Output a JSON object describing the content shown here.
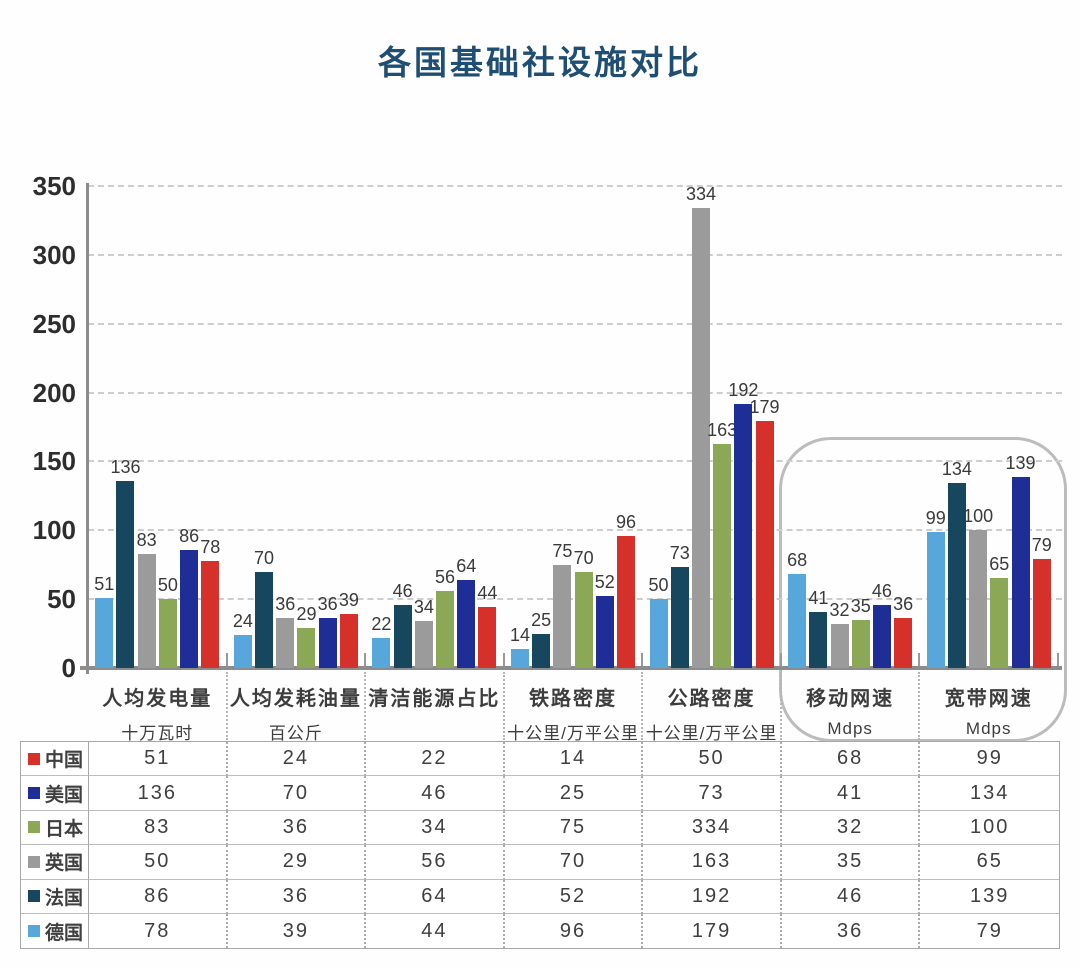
{
  "title": "各国基础社设施对比",
  "chart_data": {
    "type": "bar",
    "title": "各国基础社设施对比",
    "y_axis": {
      "min": 0,
      "max": 350,
      "step": 50,
      "ticks": [
        0,
        50,
        100,
        150,
        200,
        250,
        300,
        350
      ],
      "gridlines": "dashed"
    },
    "categories": [
      {
        "label": "人均发电量",
        "unit": "十万瓦时"
      },
      {
        "label": "人均发耗油量",
        "unit": "百公斤"
      },
      {
        "label": "清洁能源占比",
        "unit": ""
      },
      {
        "label": "铁路密度",
        "unit": "十公里/万平公里"
      },
      {
        "label": "公路密度",
        "unit": "十公里/万平公里"
      },
      {
        "label": "移动网速",
        "unit": "Mdps"
      },
      {
        "label": "宽带网速",
        "unit": "Mdps"
      }
    ],
    "series": [
      {
        "name": "中国",
        "bar_color": "#57a7db",
        "legend_color": "#d5312a",
        "values": [
          51,
          24,
          22,
          14,
          50,
          68,
          99
        ]
      },
      {
        "name": "美国",
        "bar_color": "#16475e",
        "legend_color": "#1f2e96",
        "values": [
          136,
          70,
          46,
          25,
          73,
          41,
          134
        ]
      },
      {
        "name": "日本",
        "bar_color": "#9b9b9b",
        "legend_color": "#8ba857",
        "values": [
          83,
          36,
          34,
          75,
          334,
          32,
          100
        ]
      },
      {
        "name": "英国",
        "bar_color": "#8ba857",
        "legend_color": "#9b9b9b",
        "values": [
          50,
          29,
          56,
          70,
          163,
          35,
          65
        ]
      },
      {
        "name": "法国",
        "bar_color": "#1f2e96",
        "legend_color": "#16475e",
        "values": [
          86,
          36,
          64,
          52,
          192,
          46,
          139
        ]
      },
      {
        "name": "德国",
        "bar_color": "#d5312a",
        "legend_color": "#57a7db",
        "values": [
          78,
          39,
          44,
          96,
          179,
          36,
          79
        ]
      }
    ],
    "annotations": [
      {
        "type": "rounded-outline",
        "around_categories": [
          "移动网速",
          "宽带网速"
        ],
        "color": "#bcbcbc"
      }
    ],
    "legend_position": "table-left-column",
    "colors": {
      "title": "#1f4e73",
      "axis_line": "#8c8c8c",
      "gridline": "#cdcdcd",
      "text": "#3d3d3d"
    }
  }
}
